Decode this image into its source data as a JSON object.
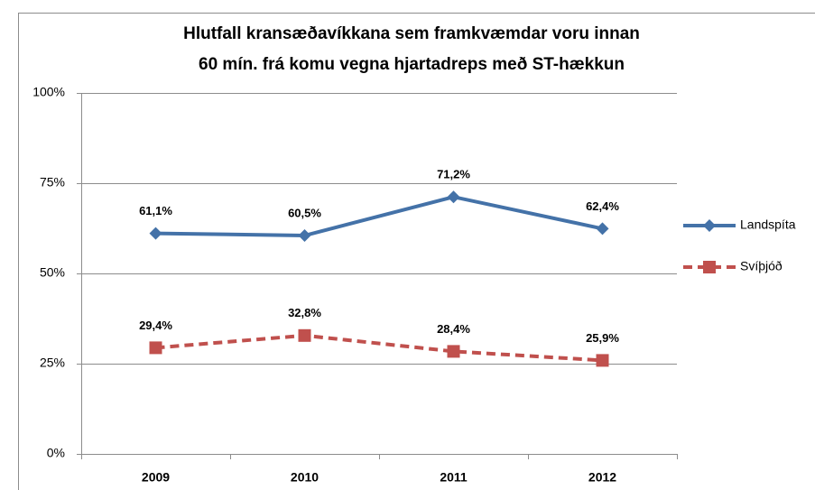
{
  "chart_data": {
    "type": "line",
    "title": "Hlutfall kransæðavíkkana  sem framkvæmdar  voru innan",
    "subtitle": "60 mín. frá komu vegna hjartadreps með ST-hækkun",
    "categories": [
      "2009",
      "2010",
      "2011",
      "2012"
    ],
    "series": [
      {
        "name": "Landspíta",
        "color": "#4472a8",
        "marker": "diamond",
        "dash": false,
        "values": [
          61.1,
          60.5,
          71.2,
          62.4
        ],
        "value_labels": [
          "61,1%",
          "60,5%",
          "71,2%",
          "62,4%"
        ]
      },
      {
        "name": "Svíþjóð",
        "color": "#c0504d",
        "marker": "square",
        "dash": true,
        "values": [
          29.4,
          32.8,
          28.4,
          25.9
        ],
        "value_labels": [
          "29,4%",
          "32,8%",
          "28,4%",
          "25,9%"
        ]
      }
    ],
    "ylim": [
      0,
      100
    ],
    "yticks": [
      {
        "value": 0,
        "label": "0%"
      },
      {
        "value": 25,
        "label": "25%"
      },
      {
        "value": 50,
        "label": "50%"
      },
      {
        "value": 75,
        "label": "75%"
      },
      {
        "value": 100,
        "label": "100%"
      }
    ],
    "grid": true,
    "legend": "right"
  }
}
